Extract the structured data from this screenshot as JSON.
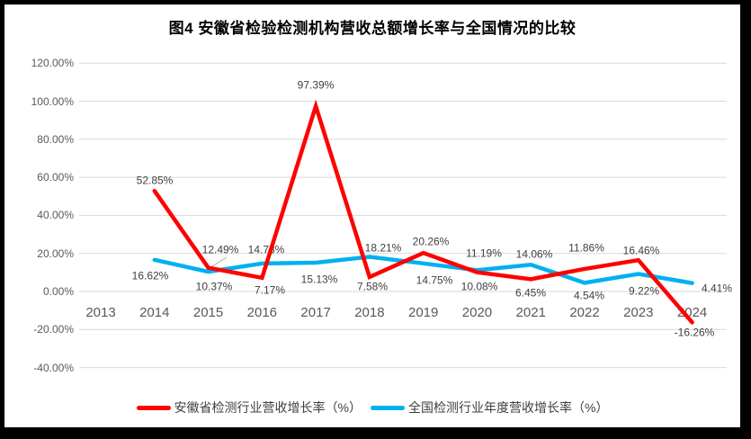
{
  "title": "图4 安徽省检验检测机构营收总额增长率与全国情况的比较",
  "chart_data": {
    "type": "line",
    "title": "图4 安徽省检验检测机构营收总额增长率与全国情况的比较",
    "categories": [
      "2013",
      "2014",
      "2015",
      "2016",
      "2017",
      "2018",
      "2019",
      "2020",
      "2021",
      "2022",
      "2023",
      "2024"
    ],
    "series": [
      {
        "name": "安徽省检测行业营收增长率（%）",
        "color": "#FF0000",
        "values": [
          null,
          52.85,
          12.49,
          7.17,
          97.39,
          7.58,
          20.26,
          10.08,
          6.45,
          11.86,
          16.46,
          -16.26
        ],
        "labels": [
          null,
          "52.85%",
          "12.49%",
          "7.17%",
          "97.39%",
          "7.58%",
          "20.26%",
          "10.08%",
          "6.45%",
          "11.86%",
          "16.46%",
          "-16.26%"
        ]
      },
      {
        "name": "全国检测行业年度营收增长率（%）",
        "color": "#00B0F0",
        "values": [
          null,
          16.62,
          10.37,
          14.73,
          15.13,
          18.21,
          14.75,
          11.19,
          14.06,
          4.54,
          9.22,
          4.41
        ],
        "labels": [
          null,
          "16.62%",
          "10.37%",
          "14.73%",
          "15.13%",
          "18.21%",
          "14.75%",
          "11.19%",
          "14.06%",
          "4.54%",
          "9.22%",
          "4.41%"
        ]
      }
    ],
    "y_axis": {
      "min": -40,
      "max": 120,
      "step": 20,
      "tick_labels": [
        "120.00%",
        "100.00%",
        "80.00%",
        "60.00%",
        "40.00%",
        "20.00%",
        "0.00%",
        "-20.00%",
        "-40.00%"
      ]
    },
    "grid": true,
    "gridline_color": "#D9D9D9",
    "legend_position": "bottom"
  },
  "legend": {
    "items": [
      {
        "label": "安徽省检测行业营收增长率（%）",
        "color": "#FF0000"
      },
      {
        "label": "全国检测行业年度营收增长率（%）",
        "color": "#00B0F0"
      }
    ]
  }
}
